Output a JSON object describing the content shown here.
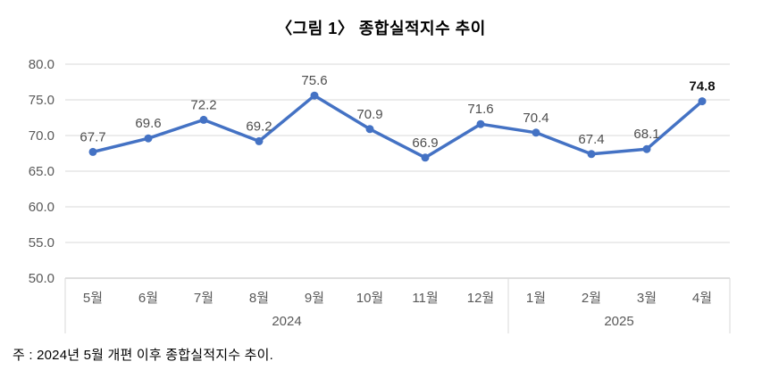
{
  "title": "〈그림 1〉 종합실적지수 추이",
  "note": "주 : 2024년 5월 개편 이후 종합실적지수 추이.",
  "chart_data": {
    "type": "line",
    "title": "〈그림 1〉 종합실적지수 추이",
    "categories": [
      "5월",
      "6월",
      "7월",
      "8월",
      "9월",
      "10월",
      "11월",
      "12월",
      "1월",
      "2월",
      "3월",
      "4월"
    ],
    "values": [
      67.7,
      69.6,
      72.2,
      69.2,
      75.6,
      70.9,
      66.9,
      71.6,
      70.4,
      67.4,
      68.1,
      74.8
    ],
    "data_labels": [
      "67.7",
      "69.6",
      "72.2",
      "69.2",
      "75.6",
      "70.9",
      "66.9",
      "71.6",
      "70.4",
      "67.4",
      "68.1",
      "74.8"
    ],
    "year_groups": [
      {
        "label": "2024",
        "start": 0,
        "count": 8
      },
      {
        "label": "2025",
        "start": 8,
        "count": 4
      }
    ],
    "y_tick_labels": [
      "50.0",
      "55.0",
      "60.0",
      "65.0",
      "70.0",
      "75.0",
      "80.0"
    ],
    "y_ticks": [
      50.0,
      55.0,
      60.0,
      65.0,
      70.0,
      75.0,
      80.0
    ],
    "ylim": [
      50.0,
      80.0
    ],
    "grid": true,
    "legend": "none",
    "xlabel": "",
    "ylabel": "",
    "emphasize_last_label": true,
    "colors": {
      "line": "#4472C4",
      "marker": "#4472C4",
      "grid": "#D9D9D9",
      "axis_line": "#BFBFBF",
      "axis_text": "#595959",
      "data_label": "#4d4d4d",
      "emphasized_label": "#111111"
    }
  }
}
